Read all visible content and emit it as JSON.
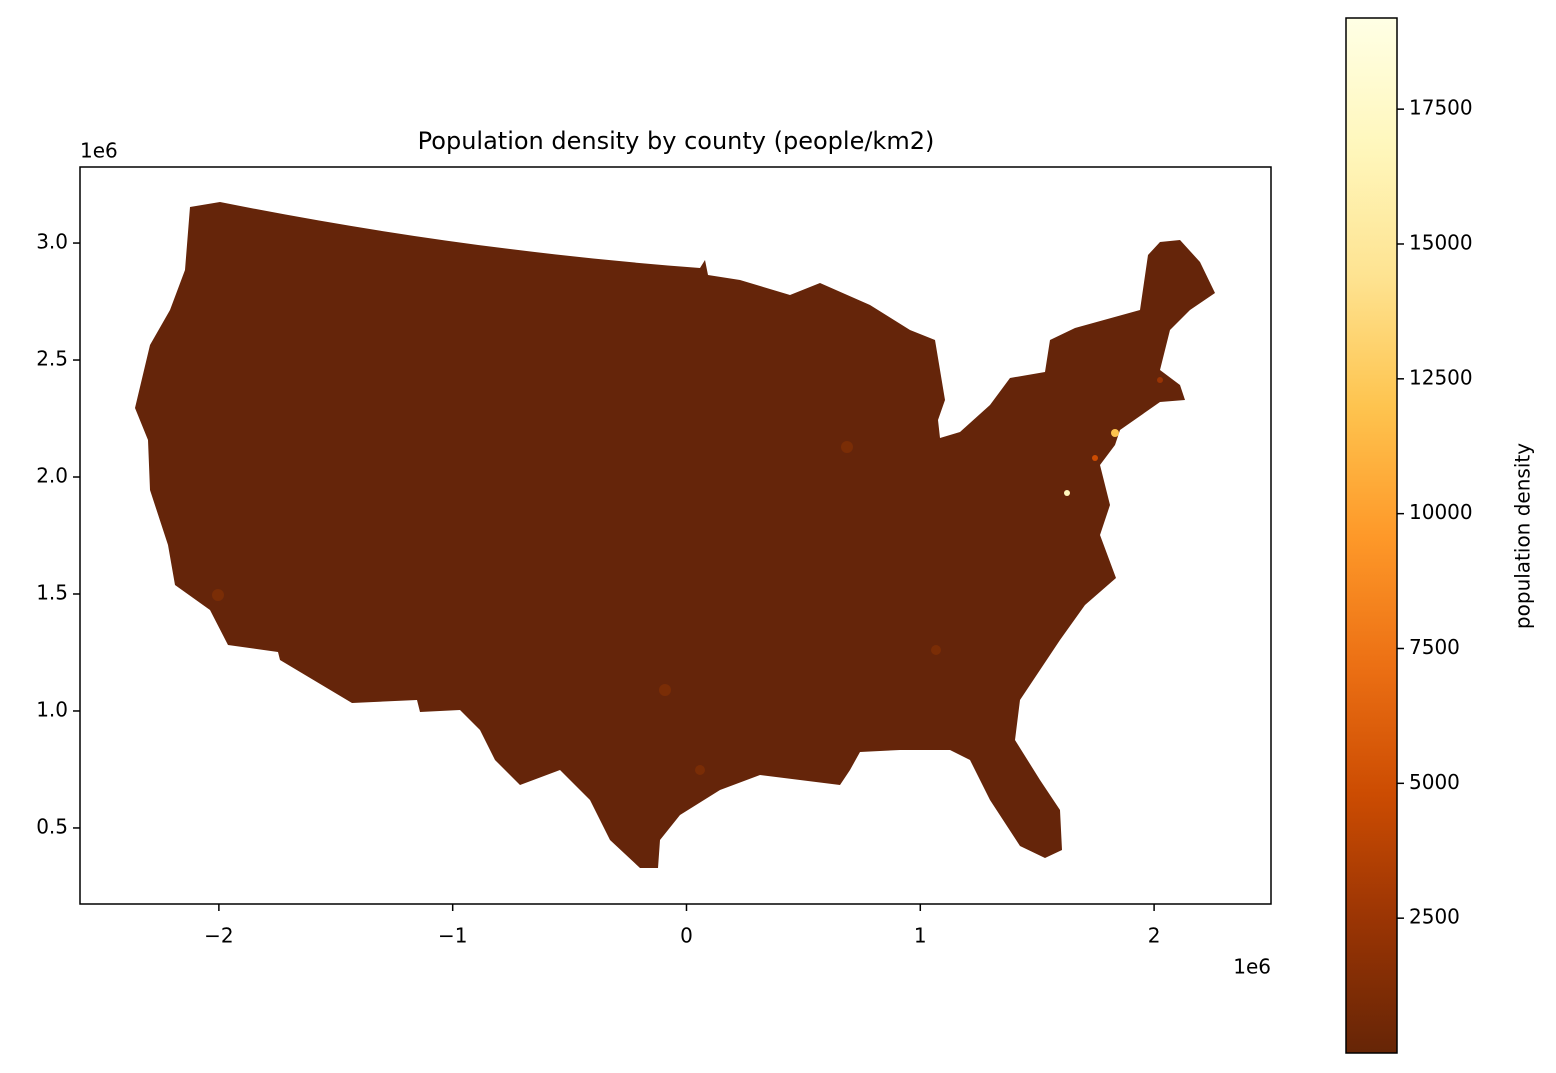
{
  "chart_data": {
    "type": "map",
    "title": "Population density by county (people/km2)",
    "x_offset_label": "1e6",
    "y_offset_label": "1e6",
    "xlim": [
      -2.594,
      2.5
    ],
    "ylim": [
      0.175,
      3.325
    ],
    "xticks": [
      {
        "value": -2,
        "label": "−2"
      },
      {
        "value": -1,
        "label": "−1"
      },
      0,
      1,
      2
    ],
    "yticks": [
      0.5,
      {
        "value": 1,
        "label": "1.0"
      },
      1.5,
      {
        "value": 2,
        "label": "2.0"
      },
      2.5,
      {
        "value": 3,
        "label": "3.0"
      }
    ],
    "fill_color": "#65250a",
    "colorbar": {
      "label": "population density",
      "lim": [
        0,
        19190
      ],
      "ticks": [
        2500,
        5000,
        7500,
        10000,
        12500,
        15000,
        17500
      ],
      "colors": [
        "#662506",
        "#993404",
        "#cc4c02",
        "#ec7014",
        "#fe9929",
        "#fec44f",
        "#fee391",
        "#fff7bc",
        "#ffffe5"
      ]
    }
  }
}
